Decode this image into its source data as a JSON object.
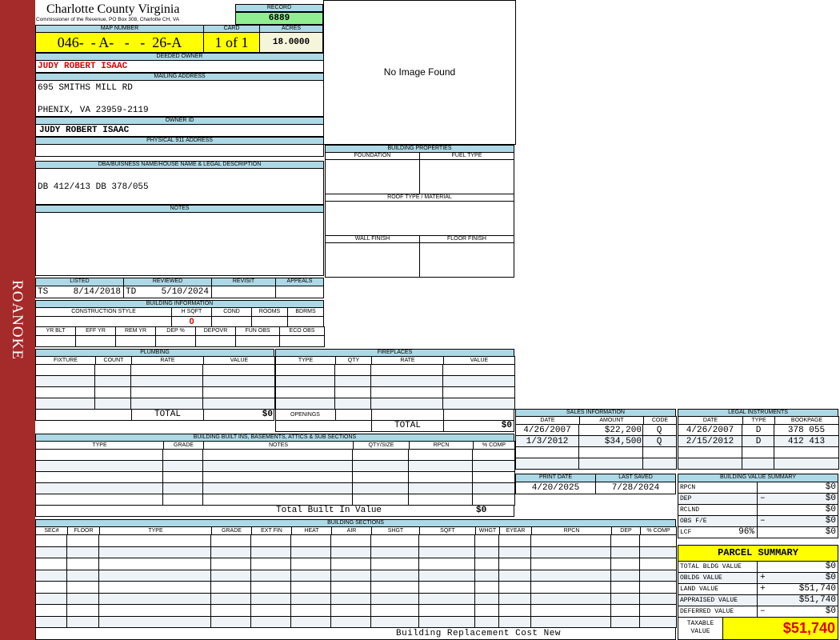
{
  "sidebar": {
    "label": "ROANOKE",
    "color": "#a52a2a"
  },
  "header": {
    "title": "Charlotte County Virginia",
    "subtitle": "Commissioner of the Revenue, PO Box 308, Charlotte CH, VA",
    "record_label": "RECORD",
    "record": "6889"
  },
  "image": {
    "text": "No Image Found"
  },
  "parcel": {
    "map_label": "MAP NUMBER",
    "map": "046-  - A-   -   -  26-A",
    "card_label": "CARD",
    "card": "1 of 1",
    "acres_label": "ACRES",
    "acres": "18.0000"
  },
  "owner": {
    "deeded_label": "DEEDED OWNER",
    "deeded": "JUDY ROBERT ISAAC",
    "mailing_label": "MAILING ADDRESS",
    "mail1": "695 SMITHS MILL RD",
    "mail2": "PHENIX, VA 23959-2119",
    "id_label": "OWNER ID",
    "id": "JUDY ROBERT ISAAC",
    "physical_label": "PHYSICAL 911 ADDRESS",
    "physical": ""
  },
  "dba": {
    "label": "DBA/BUISNESS NAME/HOUSE NAME & LEGAL DESCRIPTION",
    "value": "DB 412/413 DB 378/055"
  },
  "notes": {
    "label": "NOTES"
  },
  "review": {
    "listed_label": "LISTED",
    "listed_by": "TS",
    "listed": "8/14/2018",
    "reviewed_label": "REVIEWED",
    "reviewed_by": "TD",
    "reviewed": "5/10/2024",
    "revisit_label": "REVISIT",
    "appeals_label": "APPEALS"
  },
  "building_info": {
    "label": "BUILDING INFORMATION",
    "cols1": [
      "CONSTRUCTION STYLE",
      "H SQFT",
      "COND",
      "ROOMS",
      "BDRMS"
    ],
    "hsqft": "0",
    "cols2": [
      "YR BLT",
      "EFF YR",
      "REM YR",
      "DEP %",
      "DEPOVR",
      "FUN OBS",
      "ECO OBS"
    ]
  },
  "building_properties": {
    "label": "BUILDING PROPERTIES",
    "foundation": "FOUNDATION",
    "fuel": "FUEL TYPE",
    "roof": "ROOF TYPE / MATERIAL",
    "wall": "WALL FINISH",
    "floor": "FLOOR FINISH"
  },
  "plumbing": {
    "label": "PLUMBING",
    "cols": [
      "FIXTURE",
      "COUNT",
      "RATE",
      "VALUE"
    ],
    "total_label": "TOTAL",
    "total": "$0"
  },
  "fireplaces": {
    "label": "FIREPLACES",
    "cols": [
      "TYPE",
      "QTY",
      "RATE",
      "VALUE"
    ],
    "openings": "OPENINGS",
    "total_label": "TOTAL",
    "total": "$0"
  },
  "builtins": {
    "label": "BUILDING BUILT INS, BASEMENTS, ATTICS & SUB SECTIONS",
    "cols": [
      "TYPE",
      "GRADE",
      "NOTES",
      "QTY/SIZE",
      "RPCN",
      "% COMP"
    ],
    "total_label": "Total Built In Value",
    "total": "$0"
  },
  "sections": {
    "label": "BUILDING SECTIONS",
    "cols": [
      "SEC#",
      "FLOOR",
      "TYPE",
      "GRADE",
      "EXT FIN",
      "HEAT",
      "AIR",
      "SHGT",
      "SQFT",
      "WHGT",
      "EYEAR",
      "RPCN",
      "DEP",
      "% COMP"
    ],
    "footer": "Building Replacement Cost New"
  },
  "sales": {
    "label": "SALES INFORMATION",
    "cols": [
      "DATE",
      "AMOUNT",
      "CODE"
    ],
    "rows": [
      {
        "date": "4/26/2007",
        "amount": "$22,200",
        "code": "Q"
      },
      {
        "date": "1/3/2012",
        "amount": "$34,500",
        "code": "Q"
      }
    ]
  },
  "legal": {
    "label": "LEGAL INSTRUMENTS",
    "cols": [
      "DATE",
      "TYPE",
      "BOOKPAGE"
    ],
    "rows": [
      {
        "date": "4/26/2007",
        "type": "D",
        "bookpage": "378 055"
      },
      {
        "date": "2/15/2012",
        "type": "D",
        "bookpage": "412 413"
      }
    ]
  },
  "dates": {
    "print_label": "PRINT DATE",
    "print": "4/20/2025",
    "saved_label": "LAST SAVED",
    "saved": "7/28/2024"
  },
  "bvs": {
    "label": "BUILDING VALUE SUMMARY",
    "rows": [
      {
        "label": "RPCN",
        "op": "",
        "value": "$0"
      },
      {
        "label": "DEP",
        "op": "–",
        "value": "$0"
      },
      {
        "label": "RCLND",
        "op": "",
        "value": "$0"
      },
      {
        "label": "OBS F/E",
        "op": "–",
        "value": "$0"
      },
      {
        "label": "LCF",
        "pct": "96%",
        "op": "",
        "value": "$0"
      }
    ]
  },
  "parcel_summary": {
    "label": "PARCEL SUMMARY",
    "rows": [
      {
        "label": "TOTAL BLDG VALUE",
        "op": "",
        "value": "$0"
      },
      {
        "label": "OBLDG VALUE",
        "op": "+",
        "value": "$0"
      },
      {
        "label": "LAND VALUE",
        "op": "+",
        "value": "$51,740"
      },
      {
        "label": "APPRAISED VALUE",
        "op": "",
        "value": "$51,740"
      },
      {
        "label": "DEFERRED VALUE",
        "op": "–",
        "value": "$0"
      }
    ],
    "taxable_label": "TAXABLE VALUE",
    "taxable": "$51,740"
  }
}
